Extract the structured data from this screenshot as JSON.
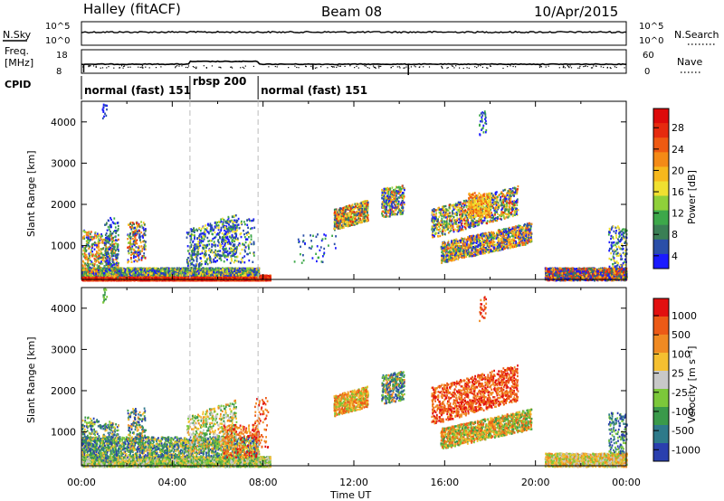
{
  "header": {
    "station": "Halley (fitACF)",
    "beam": "Beam 08",
    "date": "10/Apr/2015"
  },
  "strip": {
    "nsky_label": "N.Sky",
    "nsearch_label": "N.Search",
    "nsky_ticks": [
      "10^5",
      "10^0"
    ],
    "nsearch_ticks": [
      "10^5",
      "10^0"
    ],
    "freq_label_1": "Freq.",
    "freq_label_2": "[MHz]",
    "freq_ticks": [
      "18",
      "8"
    ],
    "nave_label": "Nave",
    "nave_ticks": [
      "60",
      "0"
    ],
    "cpid_label": "CPID",
    "cpid_segments": [
      {
        "label": "normal (fast) 151",
        "start_hour": 0.0,
        "end_hour": 4.78
      },
      {
        "label": "rbsp 200",
        "start_hour": 4.78,
        "end_hour": 7.78
      },
      {
        "label": "normal (fast) 151",
        "start_hour": 7.78,
        "end_hour": 24.0
      }
    ]
  },
  "colorbars": {
    "power": {
      "title": "Power [dB]",
      "tick_labels": [
        "28",
        "24",
        "20",
        "16",
        "12",
        "8",
        "4"
      ],
      "colors": [
        "#1a1aff",
        "#2a4fa8",
        "#3a7f55",
        "#3da84a",
        "#8fd03a",
        "#f0e030",
        "#f7b81c",
        "#f48a16",
        "#ef5a12",
        "#e62a0e",
        "#dd0a0a"
      ]
    },
    "velocity": {
      "title": "Velocity [m s⁻¹]",
      "tick_labels": [
        "1000",
        "500",
        "100",
        "25",
        "-25",
        "-100",
        "-500",
        "-1000"
      ],
      "colors": [
        "#2a3fae",
        "#2e7a8a",
        "#3a9a4a",
        "#7cc83a",
        "#c8c8c8",
        "#f5c030",
        "#f08a22",
        "#ec5a16",
        "#e21010"
      ]
    }
  },
  "chart_data": [
    {
      "type": "heatmap",
      "name": "power",
      "ylabel": "Slant Range [km]",
      "xlabel": "",
      "x_tick_labels": [
        "00:00",
        "04:00",
        "08:00",
        "12:00",
        "16:00",
        "20:00",
        "00:00"
      ],
      "xlim_hours": [
        0,
        24
      ],
      "ylim_km": [
        180,
        4500
      ],
      "y_tick_labels": [
        "1000",
        "2000",
        "3000",
        "4000"
      ],
      "colorbar": "Power [dB]"
    },
    {
      "type": "heatmap",
      "name": "velocity",
      "ylabel": "Slant Range [km]",
      "xlabel": "Time UT",
      "x_tick_labels": [
        "00:00",
        "04:00",
        "08:00",
        "12:00",
        "16:00",
        "20:00",
        "00:00"
      ],
      "xlim_hours": [
        0,
        24
      ],
      "ylim_km": [
        180,
        4500
      ],
      "y_tick_labels": [
        "1000",
        "2000",
        "3000",
        "4000"
      ],
      "colorbar": "Velocity [m s⁻¹]"
    }
  ]
}
